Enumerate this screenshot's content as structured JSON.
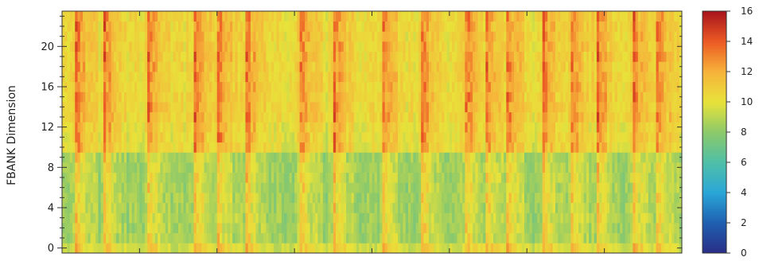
{
  "chart_data": {
    "type": "heatmap",
    "title": "",
    "xlabel": "",
    "ylabel": "FBANK Dimension",
    "y_range": [
      0,
      23
    ],
    "y_ticks": [
      0,
      4,
      8,
      12,
      16,
      20
    ],
    "y_tick_labels": [
      "0",
      "4",
      "8",
      "12",
      "16",
      "20"
    ],
    "x_ticks_labeled": false,
    "n_frames": 240,
    "n_dims": 24,
    "grid": false,
    "colorscale": {
      "name": "jet",
      "range": [
        0,
        16
      ],
      "ticks": [
        0,
        2,
        4,
        6,
        8,
        10,
        12,
        14,
        16
      ],
      "tick_labels": [
        "0",
        "2",
        "4",
        "6",
        "8",
        "10",
        "12",
        "14",
        "16"
      ],
      "stops": [
        "#2a2e86",
        "#1f5fb0",
        "#2aa6d8",
        "#4fbfa8",
        "#8cc96a",
        "#e8e23a",
        "#f6b33a",
        "#ec5a24",
        "#a8141b"
      ]
    },
    "value_model": {
      "low_band_dims": [
        0,
        9
      ],
      "low_band_quiet_level": 8.3,
      "high_band_quiet_level": 9.9,
      "onset_frames": [
        5,
        16,
        33,
        51,
        60,
        71,
        92,
        105,
        124,
        139,
        156,
        164,
        172,
        186,
        197,
        207,
        221,
        230
      ],
      "onset_peak_extra": 3.5
    },
    "values": "generated from value_model (240 frames x 24 FBANK dimensions)"
  }
}
